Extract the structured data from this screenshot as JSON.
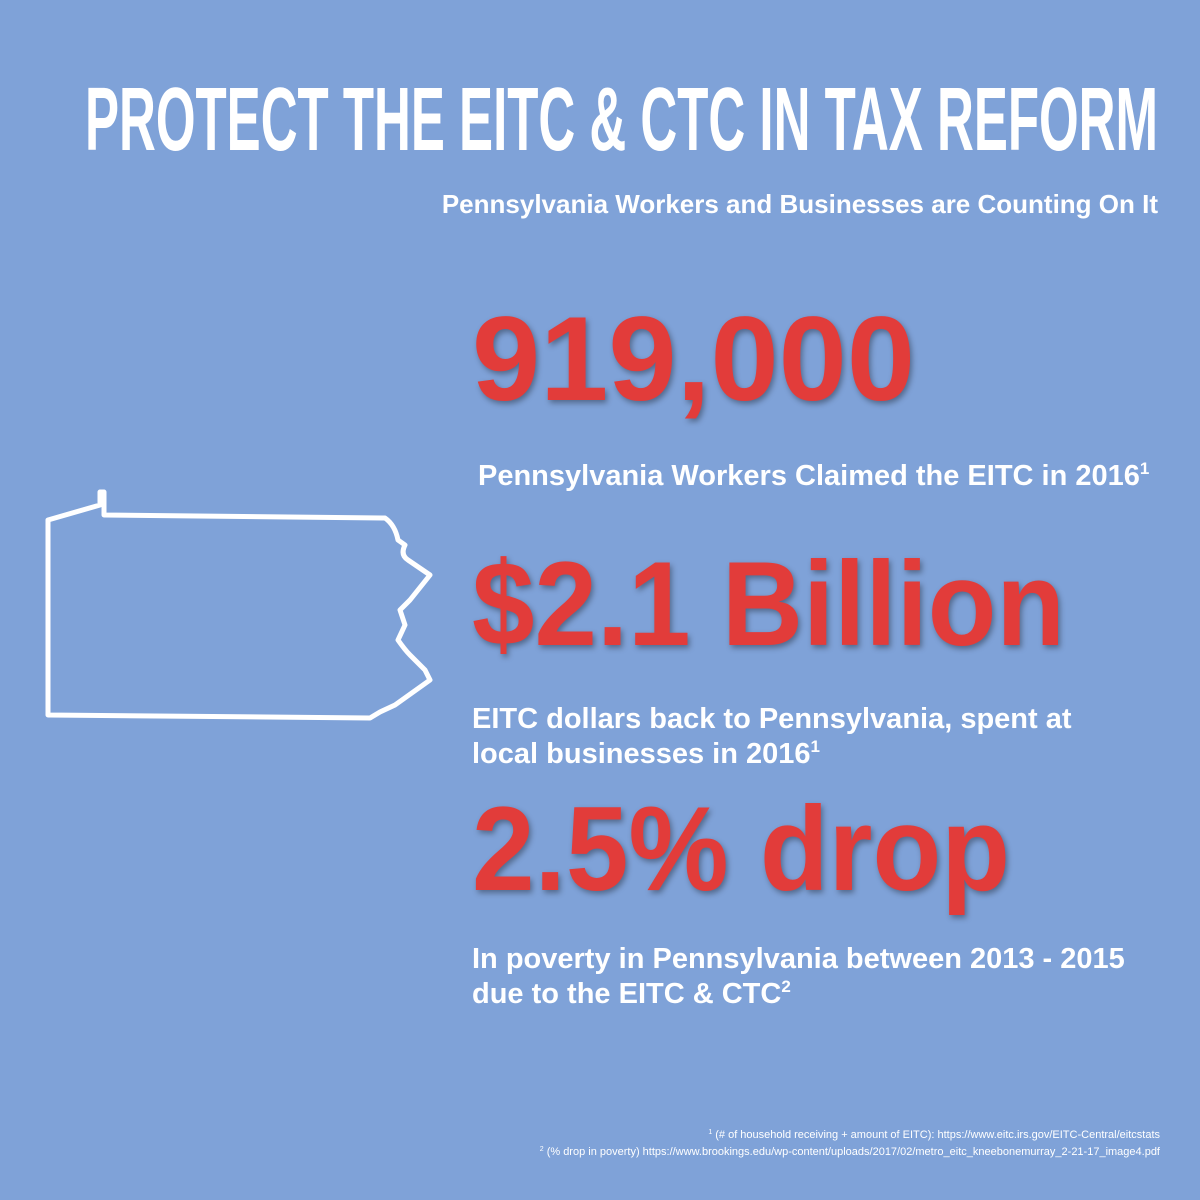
{
  "header": {
    "title": "PROTECT THE EITC & CTC IN TAX REFORM",
    "subtitle": "Pennsylvania Workers and Businesses are Counting On It"
  },
  "stats": [
    {
      "value": "919,000",
      "description": [
        "Pennsylvania Workers Claimed the EITC in 2016"
      ],
      "note": "1"
    },
    {
      "value": "$2.1 Billion",
      "description": [
        "EITC dollars back to Pennsylvania, spent at",
        "local businesses in 2016"
      ],
      "note": "1"
    },
    {
      "value": "2.5% drop",
      "description": [
        "In poverty in Pennsylvania between 2013 - 2015",
        "due to the EITC & CTC"
      ],
      "note": "2"
    }
  ],
  "footnotes": [
    {
      "marker": "1",
      "text": "(# of household receiving + amount of EITC): https://www.eitc.irs.gov/EITC-Central/eitcstats"
    },
    {
      "marker": "2",
      "text": "(% drop in poverty) https://www.brookings.edu/wp-content/uploads/2017/02/metro_eitc_kneebonemurray_2-21-17_image4.pdf"
    }
  ]
}
